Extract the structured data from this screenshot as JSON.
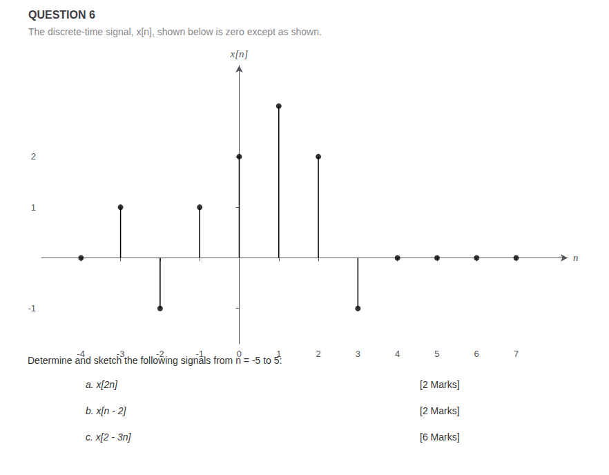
{
  "chart_data": {
    "type": "stem",
    "title": "QUESTION 6",
    "subtitle": "The discrete-time signal, x[n], shown below is zero except as shown.",
    "x": [
      -4,
      -3,
      -2,
      -1,
      0,
      1,
      2,
      3,
      4,
      5,
      6,
      7
    ],
    "values": [
      0,
      1,
      -1,
      1,
      2,
      3,
      2,
      -1,
      0,
      0,
      0,
      0
    ],
    "color": "#000000",
    "xlabel": "n",
    "ylabel": "x[n]",
    "xlim": [
      -5.0,
      8.3
    ],
    "ylim": [
      -1.7,
      3.8
    ],
    "xticks": [
      -4,
      -3,
      -2,
      -1,
      0,
      1,
      2,
      3,
      4,
      5,
      6,
      7
    ],
    "yticks": [
      -1,
      1,
      2
    ],
    "grid": false,
    "annotations": [
      "Determine and sketch the following signals from n = -5 to 5:",
      "a. x[2n]",
      "[2 Marks]",
      "b. x[n - 2]",
      "[2 Marks]",
      "c. x[2 - 3n]",
      "[6 Marks]"
    ]
  }
}
